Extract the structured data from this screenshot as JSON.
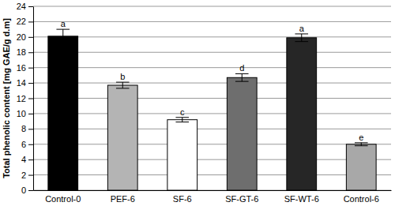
{
  "chart_data": {
    "type": "bar",
    "y_label": "Total phenolic content [mg GAE/g d.m]",
    "categories": [
      "Control-0",
      "PEF-6",
      "SF-6",
      "SF-GT-6",
      "SF-WT-6",
      "Control-6"
    ],
    "values": [
      20.1,
      13.7,
      9.2,
      14.7,
      19.9,
      6.0
    ],
    "errors": [
      0.9,
      0.4,
      0.3,
      0.5,
      0.5,
      0.2
    ],
    "annotations": [
      "a",
      "b",
      "c",
      "d",
      "a",
      "e"
    ],
    "colors": [
      "#000000",
      "#b4b4b4",
      "#ffffff",
      "#6e6e6e",
      "#262626",
      "#a8a8a8"
    ],
    "ylim": [
      0,
      24
    ],
    "yticks": [
      0,
      2,
      4,
      6,
      8,
      10,
      12,
      14,
      16,
      18,
      20,
      22,
      24
    ],
    "grid": true
  }
}
